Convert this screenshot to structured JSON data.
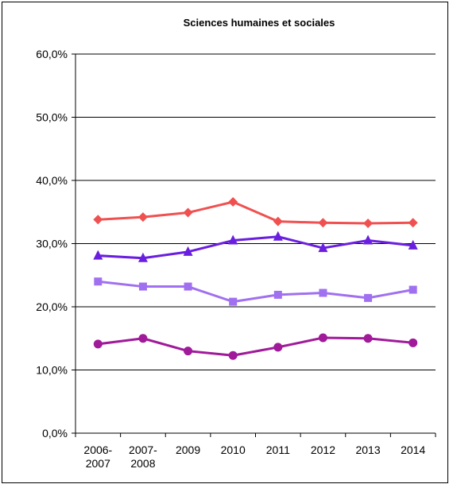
{
  "chart_data": {
    "type": "line",
    "title": "Sciences humaines et sociales",
    "xlabel": "",
    "ylabel": "",
    "ylim": [
      0,
      60
    ],
    "y_ticks": [
      "0,0%",
      "10,0%",
      "20,0%",
      "30,0%",
      "40,0%",
      "50,0%",
      "60,0%"
    ],
    "y_tick_values": [
      0,
      10,
      20,
      30,
      40,
      50,
      60
    ],
    "categories": [
      [
        "2006-",
        "2007"
      ],
      [
        "2007-",
        "2008"
      ],
      [
        "2009"
      ],
      [
        "2010"
      ],
      [
        "2011"
      ],
      [
        "2012"
      ],
      [
        "2013"
      ],
      [
        "2014"
      ]
    ],
    "grid": true,
    "legend": "none",
    "series": [
      {
        "color": "#F05050",
        "marker": "diamond",
        "values": [
          33.8,
          34.2,
          34.9,
          36.6,
          33.5,
          33.3,
          33.2,
          33.3
        ]
      },
      {
        "color": "#6A1FE0",
        "marker": "triangle",
        "values": [
          28.1,
          27.7,
          28.7,
          30.5,
          31.1,
          29.3,
          30.5,
          29.7
        ]
      },
      {
        "color": "#A070F0",
        "marker": "square",
        "values": [
          24.0,
          23.2,
          23.2,
          20.8,
          21.9,
          22.2,
          21.4,
          22.7
        ]
      },
      {
        "color": "#A01A9A",
        "marker": "circle",
        "values": [
          14.1,
          15.0,
          13.0,
          12.3,
          13.6,
          15.1,
          15.0,
          14.3
        ]
      }
    ]
  }
}
